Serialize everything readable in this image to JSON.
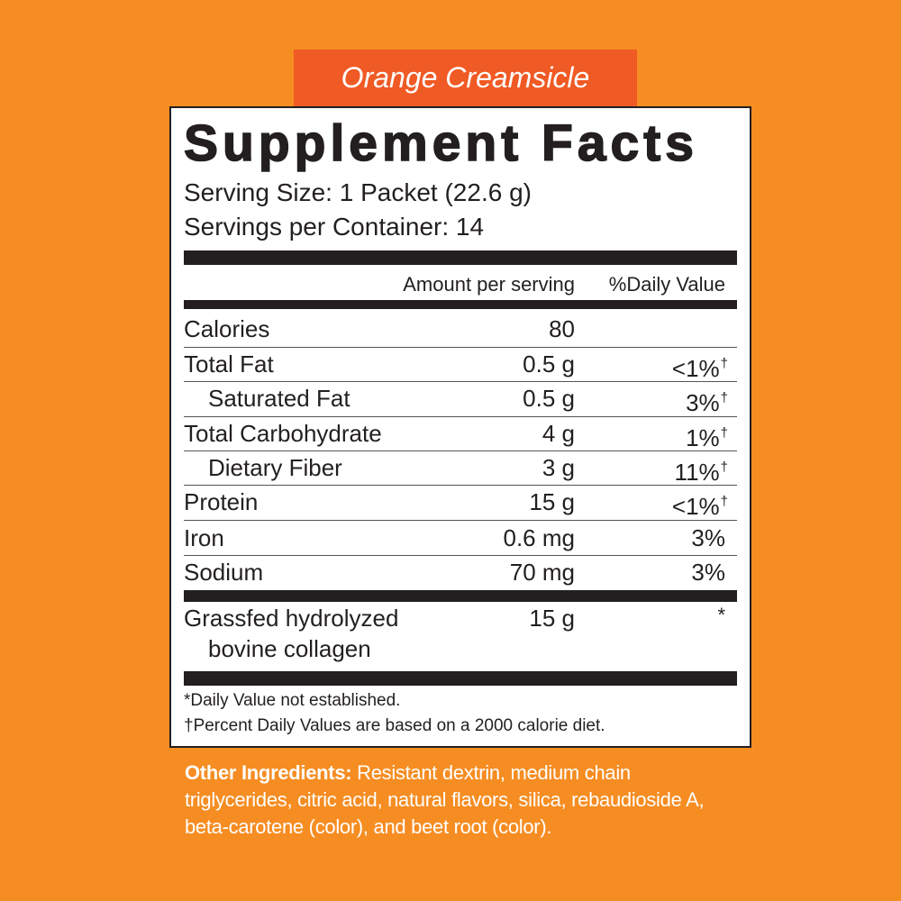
{
  "flavor": "Orange Creamsicle",
  "title": "Supplement Facts",
  "serving_size": "Serving Size: 1 Packet (22.6 g)",
  "servings_per_container": "Servings per Container: 14",
  "columns": {
    "amount": "Amount per serving",
    "daily_value": "%Daily Value"
  },
  "rows": [
    {
      "name": "Calories",
      "amount": "80"
    },
    {
      "name": "Total Fat",
      "amount": "0.5 g",
      "daily_value": "<1%",
      "note": "†"
    },
    {
      "name": "Saturated Fat",
      "amount": "0.5 g",
      "daily_value": "3%",
      "note": "†"
    },
    {
      "name": "Total Carbohydrate",
      "amount": "4 g",
      "daily_value": "1%",
      "note": "†"
    },
    {
      "name": "Dietary Fiber",
      "amount": "3 g",
      "daily_value": "11%",
      "note": "†"
    },
    {
      "name": "Protein",
      "amount": "15 g",
      "daily_value": "<1%",
      "note": "†"
    },
    {
      "name": "Iron",
      "amount": "0.6 mg",
      "daily_value": "3%"
    },
    {
      "name": "Sodium",
      "amount": "70 mg",
      "daily_value": "3%"
    }
  ],
  "special": {
    "name_lines": [
      "Grassfed hydrolyzed",
      "bovine collagen"
    ],
    "amount": "15 g",
    "daily_value": "*"
  },
  "footnotes": [
    "*Daily Value not established.",
    "†Percent Daily Values are based on a 2000 calorie diet."
  ],
  "other_ingredients": {
    "label": "Other Ingredients:",
    "text": "Resistant dextrin, medium chain triglycerides, citric acid, natural flavors, silica, rebaudioside A, beta-carotene (color), and beet root (color)."
  }
}
